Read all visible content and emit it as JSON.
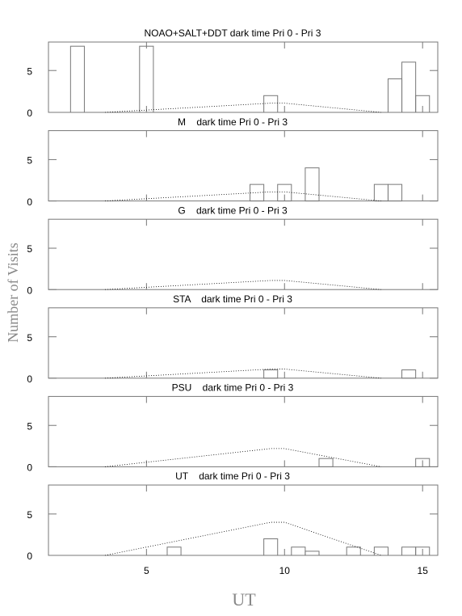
{
  "ylabel": "Number of Visits",
  "xlabel": "UT",
  "chart_data": [
    {
      "type": "histogram",
      "title": "NOAO+SALT+DDT dark time Pri 0 - Pri 3",
      "bins": [
        1.75,
        2.25,
        2.75,
        3.25,
        3.75,
        4.25,
        4.75,
        5.25,
        5.75,
        6.25,
        6.75,
        7.25,
        7.75,
        8.25,
        8.75,
        9.25,
        9.75,
        10.25,
        10.75,
        11.25,
        11.75,
        12.25,
        12.75,
        13.25,
        13.75,
        14.25,
        14.75,
        15.25
      ],
      "counts": [
        0,
        7.9,
        0,
        0,
        0,
        0,
        7.9,
        0,
        0,
        0,
        0,
        0,
        0,
        0,
        0,
        2,
        0,
        0,
        0,
        0,
        0,
        0,
        0,
        0,
        4,
        6,
        2
      ],
      "curve": {
        "x": [
          3.5,
          9.5,
          10,
          13.5
        ],
        "values": [
          0,
          1.1,
          1.1,
          0
        ]
      },
      "color": "#777777",
      "xlim": [
        1.45,
        15.55
      ],
      "ylim": [
        0,
        8.4
      ],
      "xticks": [
        5,
        10,
        15
      ],
      "yticks": [
        0,
        5
      ]
    },
    {
      "type": "histogram",
      "title": "M    dark time Pri 0 - Pri 3",
      "bins": [
        1.75,
        2.25,
        2.75,
        3.25,
        3.75,
        4.25,
        4.75,
        5.25,
        5.75,
        6.25,
        6.75,
        7.25,
        7.75,
        8.25,
        8.75,
        9.25,
        9.75,
        10.25,
        10.75,
        11.25,
        11.75,
        12.25,
        12.75,
        13.25,
        13.75,
        14.25,
        14.75,
        15.25
      ],
      "counts": [
        0,
        0,
        0,
        0,
        0,
        0,
        0,
        0,
        0,
        0,
        0,
        0,
        0,
        0,
        2,
        0,
        2,
        0,
        4,
        0,
        0,
        0,
        0,
        2,
        2,
        0,
        0
      ],
      "curve": {
        "x": [
          3.5,
          9.5,
          10,
          13.5
        ],
        "values": [
          0,
          1.1,
          1.1,
          0
        ]
      },
      "color": "#777777",
      "xlim": [
        1.45,
        15.55
      ],
      "ylim": [
        0,
        8.5
      ],
      "xticks": [
        5,
        10,
        15
      ],
      "yticks": [
        0,
        5
      ]
    },
    {
      "type": "histogram",
      "title": "G    dark time Pri 0 - Pri 3",
      "bins": [
        1.75,
        2.25,
        2.75,
        3.25,
        3.75,
        4.25,
        4.75,
        5.25,
        5.75,
        6.25,
        6.75,
        7.25,
        7.75,
        8.25,
        8.75,
        9.25,
        9.75,
        10.25,
        10.75,
        11.25,
        11.75,
        12.25,
        12.75,
        13.25,
        13.75,
        14.25,
        14.75,
        15.25
      ],
      "counts": [
        0,
        0,
        0,
        0,
        0,
        0,
        0,
        0,
        0,
        0,
        0,
        0,
        0,
        0,
        0,
        0,
        0,
        0,
        0,
        0,
        0,
        0,
        0,
        0,
        0,
        0,
        0
      ],
      "curve": {
        "x": [
          3.5,
          9.5,
          10,
          13.5
        ],
        "values": [
          0,
          1.1,
          1.1,
          0
        ]
      },
      "color": "#777777",
      "xlim": [
        1.45,
        15.55
      ],
      "ylim": [
        0,
        8.5
      ],
      "xticks": [
        5,
        10,
        15
      ],
      "yticks": [
        0,
        5
      ]
    },
    {
      "type": "histogram",
      "title": "STA    dark time Pri 0 - Pri 3",
      "bins": [
        1.75,
        2.25,
        2.75,
        3.25,
        3.75,
        4.25,
        4.75,
        5.25,
        5.75,
        6.25,
        6.75,
        7.25,
        7.75,
        8.25,
        8.75,
        9.25,
        9.75,
        10.25,
        10.75,
        11.25,
        11.75,
        12.25,
        12.75,
        13.25,
        13.75,
        14.25,
        14.75,
        15.25
      ],
      "counts": [
        0,
        0,
        0,
        0,
        0,
        0,
        0,
        0,
        0,
        0,
        0,
        0,
        0,
        0,
        0,
        1,
        0,
        0,
        0,
        0,
        0,
        0,
        0,
        0,
        0,
        1,
        0
      ],
      "curve": {
        "x": [
          3.5,
          9.5,
          10,
          13.5
        ],
        "values": [
          0,
          1.1,
          1.1,
          0
        ]
      },
      "color": "#777777",
      "xlim": [
        1.45,
        15.55
      ],
      "ylim": [
        0,
        8.5
      ],
      "xticks": [
        5,
        10,
        15
      ],
      "yticks": [
        0,
        5
      ]
    },
    {
      "type": "histogram",
      "title": "PSU    dark time Pri 0 - Pri 3",
      "bins": [
        1.75,
        2.25,
        2.75,
        3.25,
        3.75,
        4.25,
        4.75,
        5.25,
        5.75,
        6.25,
        6.75,
        7.25,
        7.75,
        8.25,
        8.75,
        9.25,
        9.75,
        10.25,
        10.75,
        11.25,
        11.75,
        12.25,
        12.75,
        13.25,
        13.75,
        14.25,
        14.75,
        15.25
      ],
      "counts": [
        0,
        0,
        0,
        0,
        0,
        0,
        0,
        0,
        0,
        0,
        0,
        0,
        0,
        0,
        0,
        0,
        0,
        0,
        0,
        1,
        0,
        0,
        0,
        0,
        0,
        0,
        1
      ],
      "curve": {
        "x": [
          3.5,
          9.5,
          10,
          13.5
        ],
        "values": [
          0,
          2.2,
          2.2,
          0
        ]
      },
      "color": "#777777",
      "xlim": [
        1.45,
        15.55
      ],
      "ylim": [
        0,
        8.5
      ],
      "xticks": [
        5,
        10,
        15
      ],
      "yticks": [
        0,
        5
      ]
    },
    {
      "type": "histogram",
      "title": "UT    dark time Pri 0 - Pri 3",
      "bins": [
        1.75,
        2.25,
        2.75,
        3.25,
        3.75,
        4.25,
        4.75,
        5.25,
        5.75,
        6.25,
        6.75,
        7.25,
        7.75,
        8.25,
        8.75,
        9.25,
        9.75,
        10.25,
        10.75,
        11.25,
        11.75,
        12.25,
        12.75,
        13.25,
        13.75,
        14.25,
        14.75,
        15.25
      ],
      "counts": [
        0,
        0,
        0,
        0,
        0,
        0,
        0,
        0,
        1,
        0,
        0,
        0,
        0,
        0,
        0,
        2,
        0,
        1,
        0.5,
        0,
        0,
        1,
        0,
        1,
        0,
        1,
        1
      ],
      "curve": {
        "x": [
          3.5,
          9.5,
          10,
          13.5
        ],
        "values": [
          0,
          4,
          4,
          0
        ]
      },
      "color": "#777777",
      "xlim": [
        1.45,
        15.55
      ],
      "ylim": [
        0,
        8.5
      ],
      "xticks": [
        5,
        10,
        15
      ],
      "yticks": [
        0,
        5
      ]
    }
  ]
}
